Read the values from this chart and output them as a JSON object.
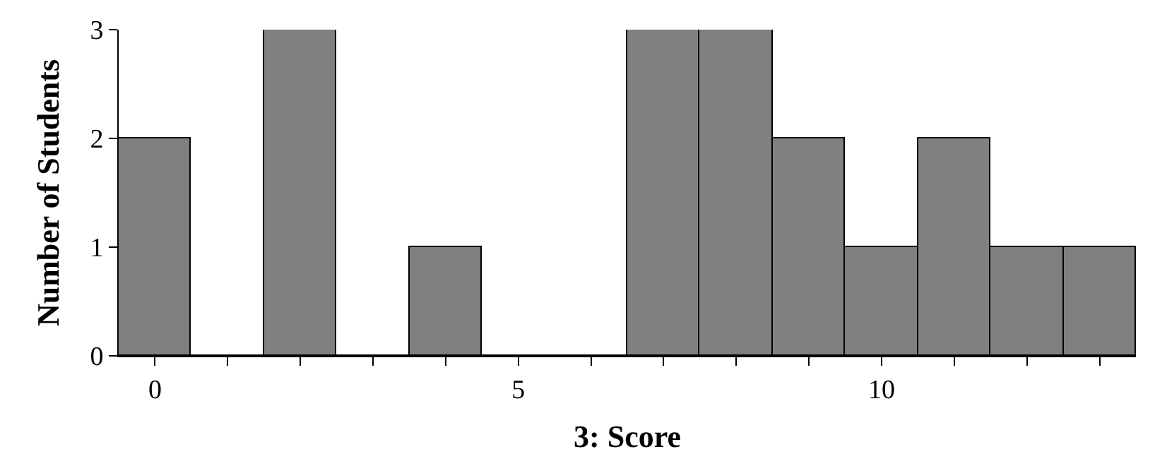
{
  "chart_data": {
    "type": "histogram",
    "xlabel": "3: Score",
    "ylabel": "Number of Students",
    "bins": [
      -0.5,
      0.5,
      1.5,
      2.5,
      3.5,
      4.5,
      5.5,
      6.5,
      7.5,
      8.5,
      9.5,
      10.5,
      11.5,
      12.5,
      13.5
    ],
    "values": [
      2,
      0,
      3,
      0,
      1,
      0,
      0,
      3,
      3,
      2,
      1,
      2,
      1,
      1
    ],
    "color": "#808080",
    "xlim": [
      -0.5,
      13.5
    ],
    "xticks": [
      0,
      {
        "value": 1,
        "label": null
      },
      {
        "value": 2,
        "label": null
      },
      {
        "value": 3,
        "label": null
      },
      {
        "value": 4,
        "label": null
      },
      5,
      {
        "value": 6,
        "label": null
      },
      {
        "value": 7,
        "label": null
      },
      {
        "value": 8,
        "label": null
      },
      {
        "value": 9,
        "label": null
      },
      10,
      {
        "value": 11,
        "label": null
      },
      {
        "value": 12,
        "label": null
      },
      {
        "value": 13,
        "label": null
      }
    ],
    "ylim": [
      0,
      3
    ],
    "yticks": [
      0,
      1,
      2,
      3
    ]
  }
}
